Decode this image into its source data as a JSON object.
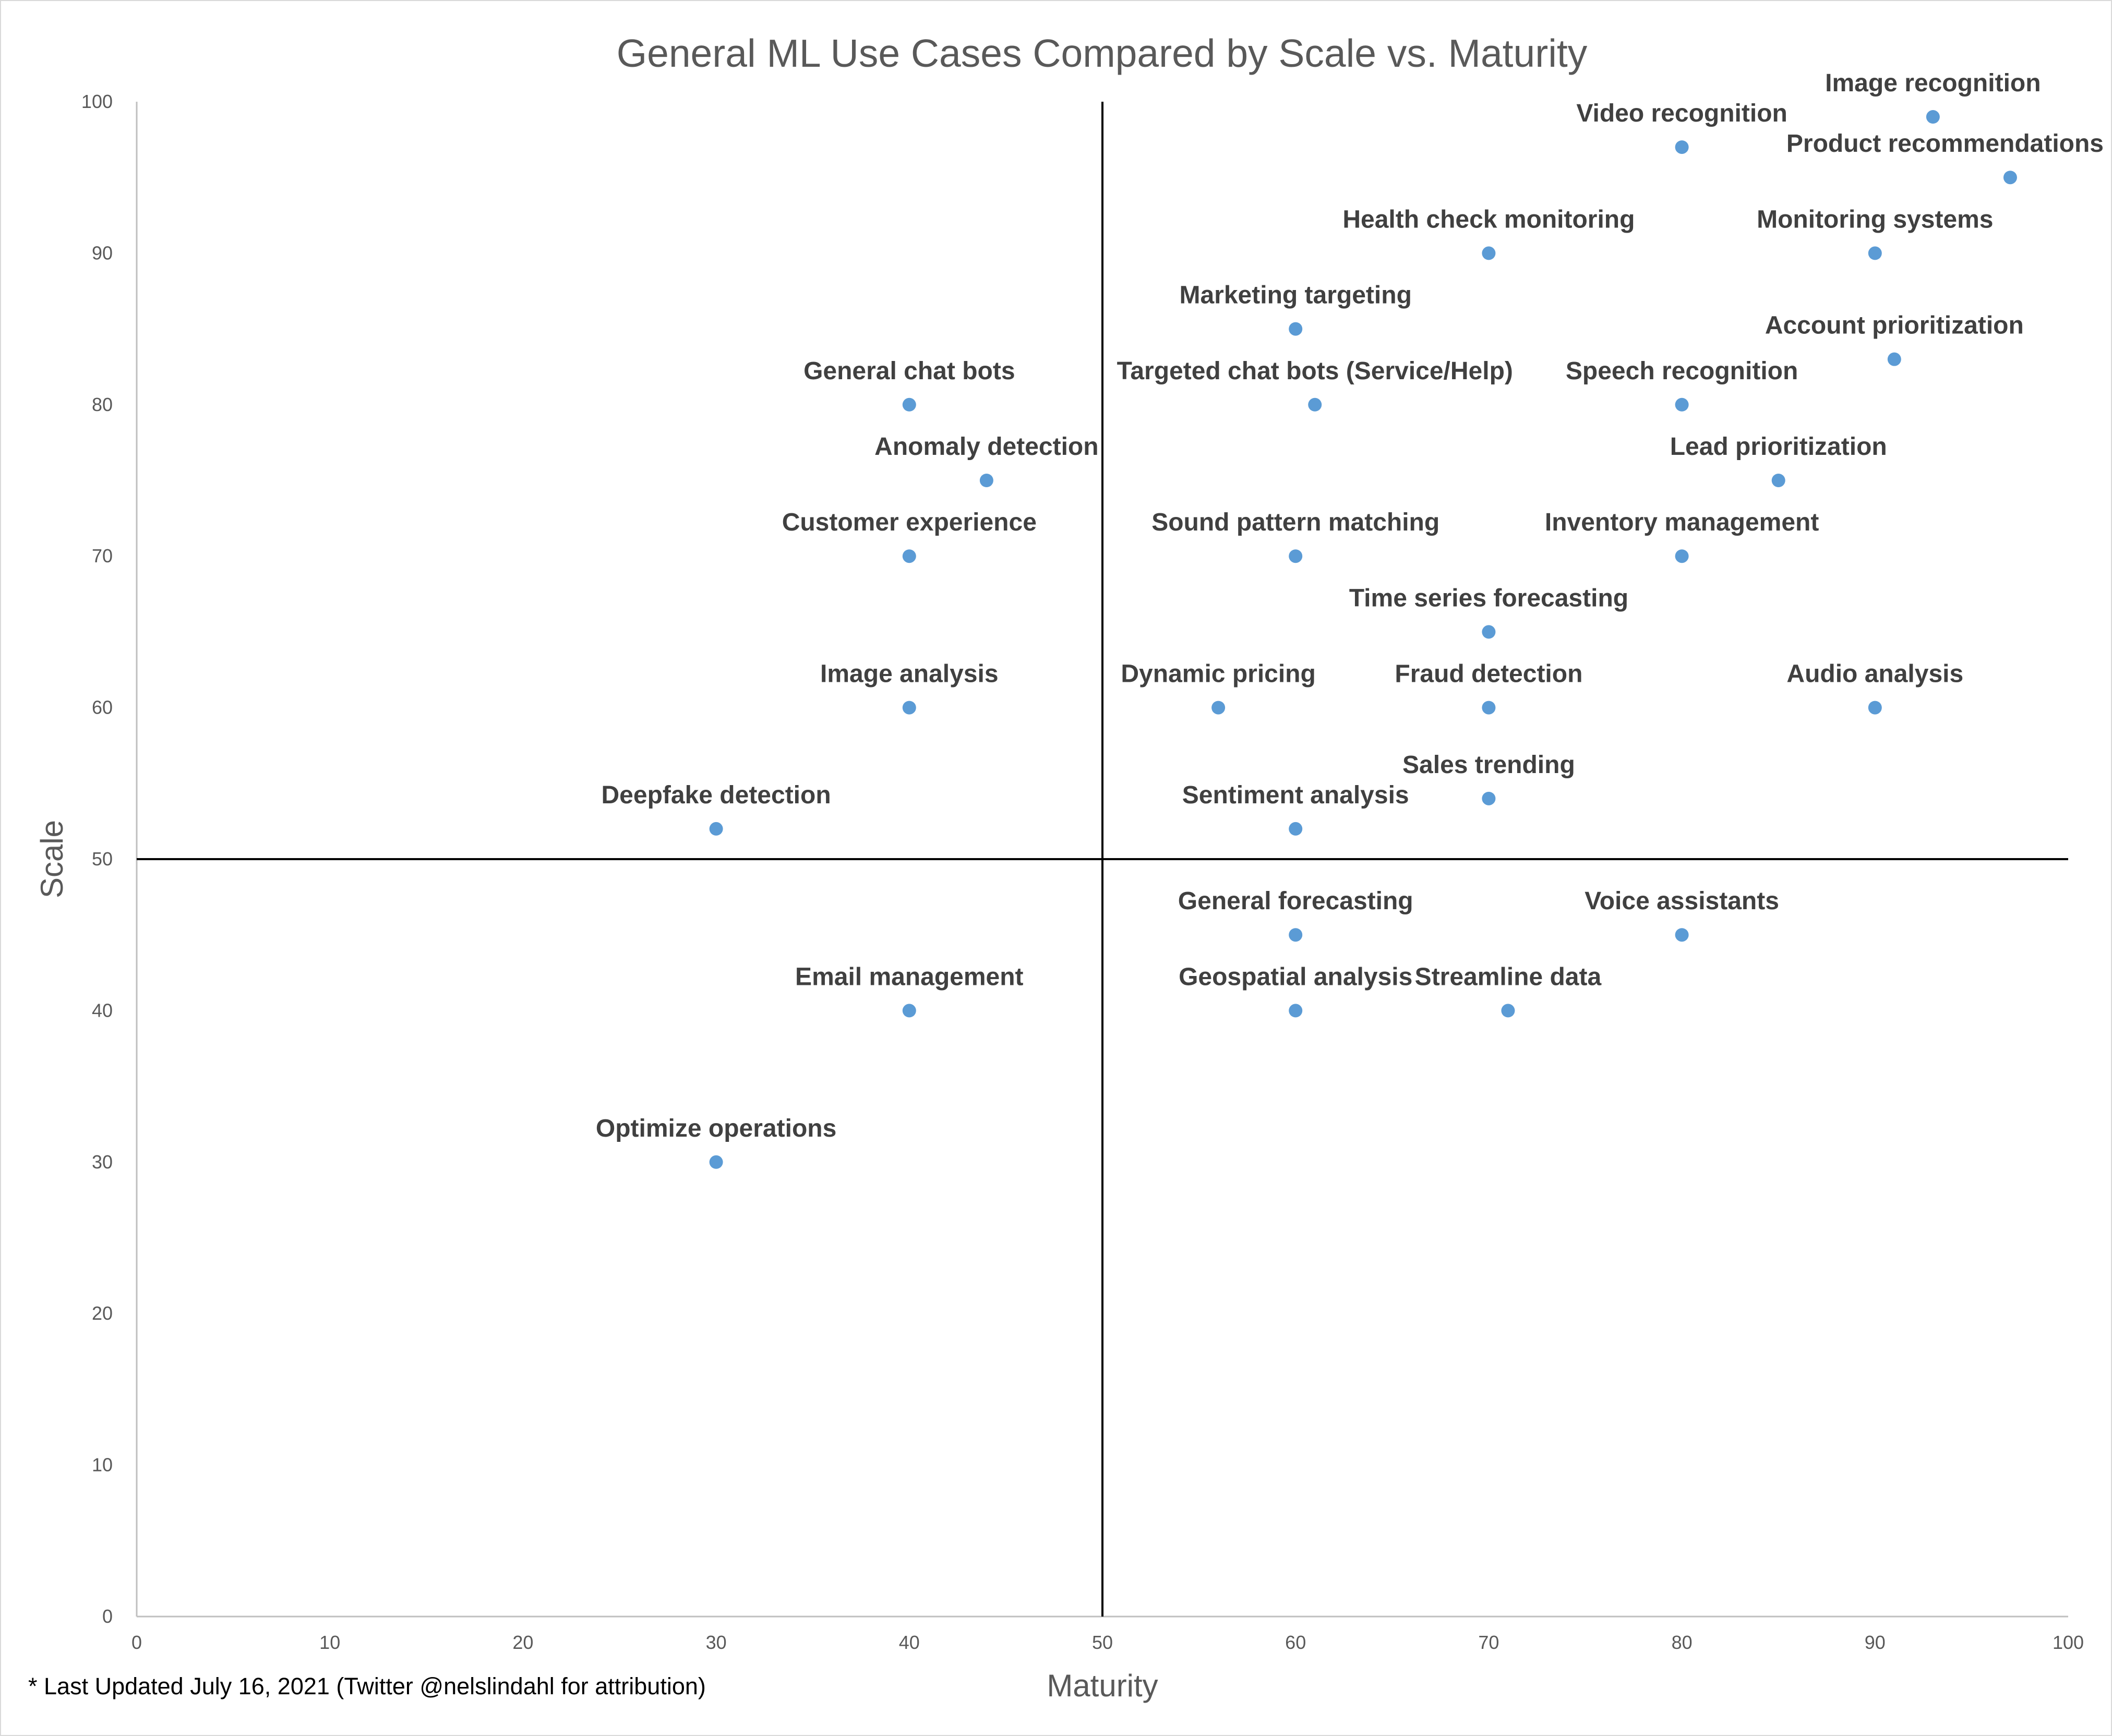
{
  "chart_data": {
    "type": "scatter",
    "title": "General ML Use Cases Compared by Scale vs. Maturity",
    "xlabel": "Maturity",
    "ylabel": "Scale",
    "xlim": [
      0,
      100
    ],
    "ylim": [
      0,
      100
    ],
    "x_ticks": [
      "0",
      "10",
      "20",
      "30",
      "40",
      "50",
      "60",
      "70",
      "80",
      "90",
      "100"
    ],
    "y_ticks": [
      "0",
      "10",
      "20",
      "30",
      "40",
      "50",
      "60",
      "70",
      "80",
      "90",
      "100"
    ],
    "quadrant_lines": {
      "x": 50,
      "y": 50
    },
    "grid": false,
    "marker_color": "#5b9bd5",
    "points": [
      {
        "label": "Image recognition",
        "x": 93,
        "y": 99
      },
      {
        "label": "Video recognition",
        "x": 80,
        "y": 97
      },
      {
        "label": "Product recommendations",
        "x": 97,
        "y": 95
      },
      {
        "label": "Health check monitoring",
        "x": 70,
        "y": 90
      },
      {
        "label": "Monitoring systems",
        "x": 90,
        "y": 90
      },
      {
        "label": "Marketing targeting",
        "x": 60,
        "y": 85
      },
      {
        "label": "Account prioritization",
        "x": 91,
        "y": 83
      },
      {
        "label": "General chat bots",
        "x": 40,
        "y": 80
      },
      {
        "label": "Targeted chat bots (Service/Help)",
        "x": 61,
        "y": 80
      },
      {
        "label": "Speech recognition",
        "x": 80,
        "y": 80
      },
      {
        "label": "Anomaly detection",
        "x": 44,
        "y": 75
      },
      {
        "label": "Lead prioritization",
        "x": 85,
        "y": 75
      },
      {
        "label": "Customer experience",
        "x": 40,
        "y": 70
      },
      {
        "label": "Sound pattern matching",
        "x": 60,
        "y": 70
      },
      {
        "label": "Inventory management",
        "x": 80,
        "y": 70
      },
      {
        "label": "Time series forecasting",
        "x": 70,
        "y": 65
      },
      {
        "label": "Image analysis",
        "x": 40,
        "y": 60
      },
      {
        "label": "Dynamic pricing",
        "x": 56,
        "y": 60
      },
      {
        "label": "Fraud detection",
        "x": 70,
        "y": 60
      },
      {
        "label": "Audio analysis",
        "x": 90,
        "y": 60
      },
      {
        "label": "Sales trending",
        "x": 70,
        "y": 54
      },
      {
        "label": "Deepfake detection",
        "x": 30,
        "y": 52
      },
      {
        "label": "Sentiment analysis",
        "x": 60,
        "y": 52
      },
      {
        "label": "General forecasting",
        "x": 60,
        "y": 45
      },
      {
        "label": "Voice assistants",
        "x": 80,
        "y": 45
      },
      {
        "label": "Email management",
        "x": 40,
        "y": 40
      },
      {
        "label": "Geospatial analysis",
        "x": 60,
        "y": 40
      },
      {
        "label": "Streamline data",
        "x": 71,
        "y": 40
      },
      {
        "label": "Optimize operations",
        "x": 30,
        "y": 30
      }
    ]
  },
  "footnote": "* Last Updated July 16, 2021 (Twitter @nelslindahl for attribution)"
}
